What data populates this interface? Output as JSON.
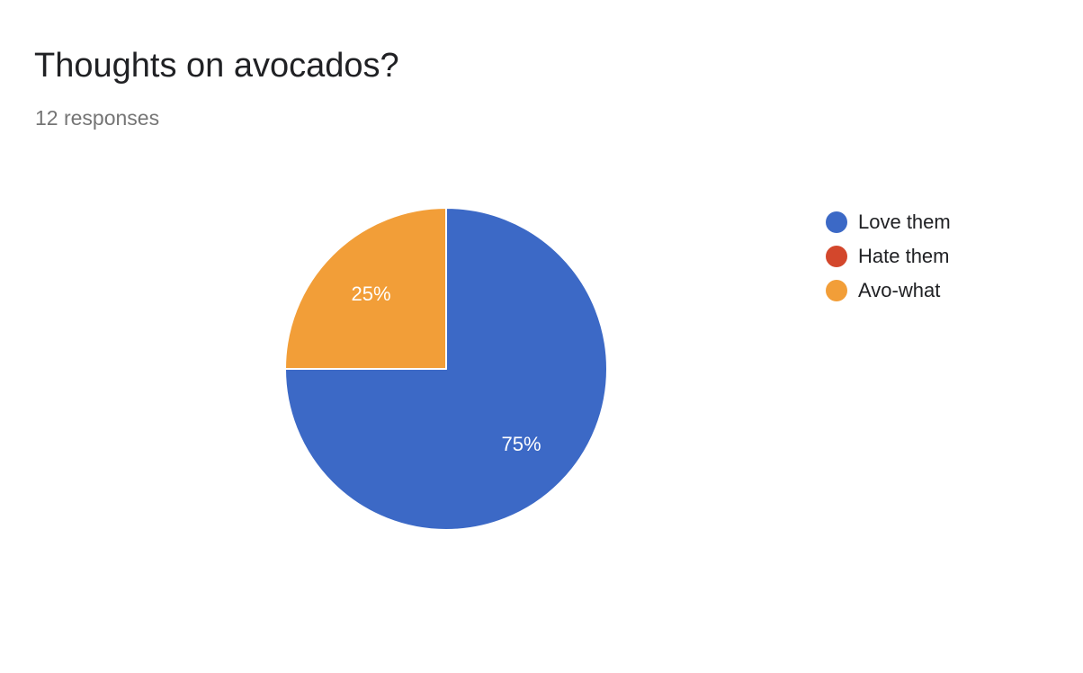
{
  "chart_data": {
    "type": "pie",
    "title": "Thoughts on avocados?",
    "subtitle": "12 responses",
    "legend_position": "right",
    "slices": [
      {
        "label": "Love them",
        "value": 75,
        "display": "75%",
        "color": "#3c69c6"
      },
      {
        "label": "Hate them",
        "value": 0,
        "display": "0%",
        "color": "#d3472c"
      },
      {
        "label": "Avo-what",
        "value": 25,
        "display": "25%",
        "color": "#f29e38"
      }
    ]
  }
}
